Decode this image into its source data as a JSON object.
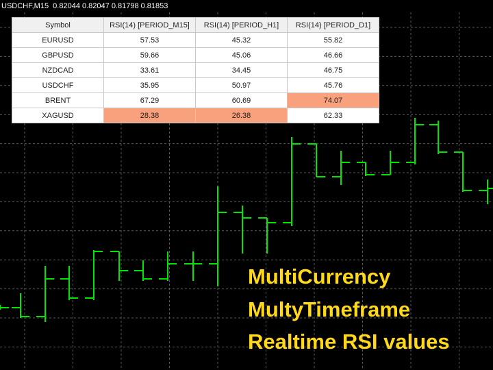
{
  "header": {
    "title": "USDCHF,M15  0.82044 0.82047 0.81798 0.81853"
  },
  "table": {
    "columns": [
      "Symbol",
      "RSI(14) [PERIOD_M15]",
      "RSI(14) [PERIOD_H1]",
      "RSI(14) [PERIOD_D1]"
    ],
    "rows": [
      [
        "EURUSD",
        "57.53",
        "45.32",
        "55.82"
      ],
      [
        "GBPUSD",
        "59.66",
        "45.06",
        "46.66"
      ],
      [
        "NZDCAD",
        "33.61",
        "34.45",
        "46.75"
      ],
      [
        "USDCHF",
        "35.95",
        "50.97",
        "45.76"
      ],
      [
        "BRENT",
        "67.29",
        "60.69",
        "74.07"
      ],
      [
        "XAGUSD",
        "28.38",
        "26.38",
        "62.33"
      ]
    ],
    "highlighted": [
      [
        4,
        3
      ],
      [
        5,
        1
      ],
      [
        5,
        2
      ]
    ],
    "highlight_color": "#f9a07c"
  },
  "overlay": {
    "lines": [
      "MultiCurrency",
      "MultyTimeframe",
      "Realtime RSI values"
    ],
    "color": "#ffd81a"
  }
}
